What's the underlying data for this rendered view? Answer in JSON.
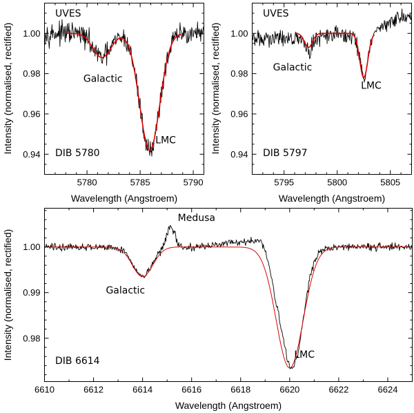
{
  "chart_data": [
    {
      "id": "p5780",
      "type": "line",
      "instrument": "UVES",
      "dib_label": "DIB 5780",
      "xlabel": "Wavelength (Angstroem)",
      "ylabel": "Intensity (normalised, rectified)",
      "xlim": [
        5776,
        5791
      ],
      "ylim": [
        0.93,
        1.015
      ],
      "xticks": [
        5780,
        5785,
        5790
      ],
      "yticks": [
        0.94,
        0.96,
        0.98,
        1.0
      ],
      "ytick_labels": [
        "0.94",
        "0.96",
        "0.98",
        "1.00"
      ],
      "annotations": [
        {
          "text": "Galactic",
          "x": 5781.5,
          "y": 0.976
        },
        {
          "text": "LMC",
          "x": 5787.4,
          "y": 0.9455
        }
      ],
      "series": [
        {
          "name": "observed spectrum",
          "color": "#000000",
          "continuum": 1.0,
          "noise": 0.0045,
          "xstart": 5776,
          "xend": 5791,
          "step": 0.05,
          "components": [
            {
              "center": 5781.4,
              "depth": 0.012,
              "sigma": 0.85
            },
            {
              "center": 5785.9,
              "depth": 0.058,
              "sigma": 0.95
            }
          ]
        },
        {
          "name": "model fit",
          "color": "#e00000",
          "continuum": 1.0,
          "noise": 0,
          "xstart": 5778.0,
          "xend": 5788.9,
          "step": 0.05,
          "components": [
            {
              "center": 5781.4,
              "depth": 0.012,
              "sigma": 0.85
            },
            {
              "center": 5785.9,
              "depth": 0.058,
              "sigma": 0.95
            }
          ]
        }
      ]
    },
    {
      "id": "p5797",
      "type": "line",
      "instrument": "UVES",
      "dib_label": "DIB 5797",
      "xlabel": "Wavelength (Angstroem)",
      "ylabel": "Intensity (normalised, rectified)",
      "xlim": [
        5792,
        5807
      ],
      "ylim": [
        0.93,
        1.015
      ],
      "xticks": [
        5795,
        5800,
        5805
      ],
      "yticks": [
        0.94,
        0.96,
        0.98,
        1.0
      ],
      "ytick_labels": [
        "0.94",
        "0.96",
        "0.98",
        "1.00"
      ],
      "annotations": [
        {
          "text": "Galactic",
          "x": 5795.8,
          "y": 0.9815
        },
        {
          "text": "LMC",
          "x": 5803.2,
          "y": 0.9725
        }
      ],
      "series": [
        {
          "name": "observed spectrum",
          "color": "#000000",
          "continuum": 1.0,
          "noise": 0.0035,
          "xstart": 5792,
          "xend": 5807,
          "step": 0.05,
          "trend": [
            {
              "x": 5792,
              "y": 0.997
            },
            {
              "x": 5803.5,
              "y": 1.0
            },
            {
              "x": 5806,
              "y": 1.009
            },
            {
              "x": 5807,
              "y": 1.008
            }
          ],
          "components": [
            {
              "center": 5797.3,
              "depth": 0.007,
              "sigma": 0.38
            },
            {
              "center": 5802.5,
              "depth": 0.022,
              "sigma": 0.38
            }
          ]
        },
        {
          "name": "model fit",
          "color": "#e00000",
          "continuum": 1.0,
          "noise": 0,
          "xstart": 5796.0,
          "xend": 5803.5,
          "step": 0.05,
          "components": [
            {
              "center": 5797.3,
              "depth": 0.007,
              "sigma": 0.38
            },
            {
              "center": 5802.5,
              "depth": 0.022,
              "sigma": 0.38
            }
          ]
        }
      ]
    },
    {
      "id": "p6614",
      "type": "line",
      "instrument": "Medusa",
      "dib_label": "DIB 6614",
      "xlabel": "Wavelength (Angstroem)",
      "ylabel": "Intensity (normalised, rectified)",
      "xlim": [
        6610,
        6625
      ],
      "ylim": [
        0.9705,
        1.0085
      ],
      "xticks": [
        6610,
        6612,
        6614,
        6616,
        6618,
        6620,
        6622,
        6624
      ],
      "yticks": [
        0.98,
        0.99,
        1.0
      ],
      "ytick_labels": [
        "0.98",
        "0.99",
        "1.00"
      ],
      "annotations": [
        {
          "text": "Medusa",
          "x": 6616.2,
          "y": 1.0057
        },
        {
          "text": "Galactic",
          "x": 6613.3,
          "y": 0.9898
        },
        {
          "text": "LMC",
          "x": 6620.6,
          "y": 0.9757
        }
      ],
      "series": [
        {
          "name": "observed spectrum",
          "color": "#000000",
          "continuum": 1.0,
          "noise": 0.0007,
          "xstart": 6610,
          "xend": 6625,
          "step": 0.025,
          "components": [
            {
              "center": 6614.0,
              "depth": 0.0065,
              "sigma": 0.38
            },
            {
              "center": 6620.1,
              "depth": 0.0265,
              "sigma": 0.44
            },
            {
              "center": 6619.4,
              "depth": 0.0035,
              "sigma": 0.25
            },
            {
              "center": 6615.15,
              "depth": -0.0045,
              "sigma": 0.16
            },
            {
              "center": 6617.8,
              "depth": -0.0012,
              "sigma": 0.6
            },
            {
              "center": 6618.8,
              "depth": -0.0015,
              "sigma": 0.25
            }
          ]
        },
        {
          "name": "model fit",
          "color": "#e00000",
          "continuum": 1.0,
          "noise": 0,
          "xstart": 6610,
          "xend": 6625,
          "step": 0.025,
          "components": [
            {
              "center": 6614.0,
              "depth": 0.0065,
              "sigma": 0.42
            },
            {
              "center": 6620.0,
              "depth": 0.0265,
              "sigma": 0.55
            }
          ]
        }
      ]
    }
  ]
}
